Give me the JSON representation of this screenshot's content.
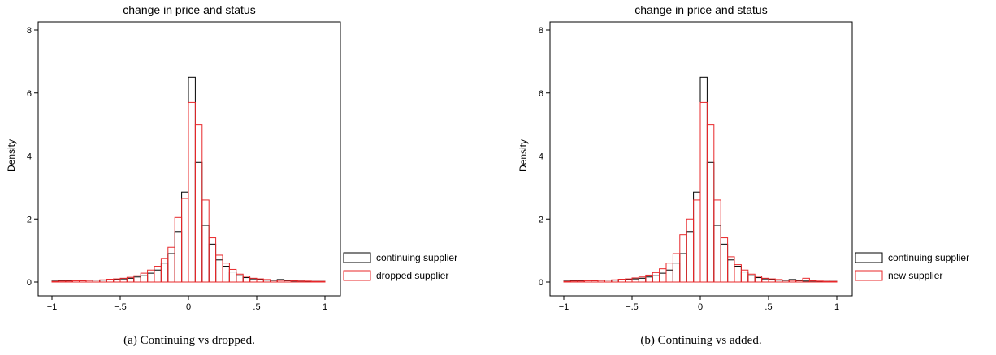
{
  "chart_data": [
    {
      "type": "histogram",
      "title": "change in price and status",
      "caption": "(a) Continuing vs dropped.",
      "ylabel": "Density",
      "xlim": [
        -1,
        1
      ],
      "ylim": [
        0,
        8
      ],
      "xticks": [
        "-1",
        "-.5",
        "0",
        ".5",
        "1"
      ],
      "yticks": [
        "0",
        "2",
        "4",
        "6",
        "8"
      ],
      "bin_width": 0.05,
      "legend_position": "right",
      "series": [
        {
          "name": "continuing supplier",
          "color": "#000000",
          "x": [
            -1.0,
            -0.95,
            -0.9,
            -0.85,
            -0.8,
            -0.75,
            -0.7,
            -0.65,
            -0.6,
            -0.55,
            -0.5,
            -0.45,
            -0.4,
            -0.35,
            -0.3,
            -0.25,
            -0.2,
            -0.15,
            -0.1,
            -0.05,
            0.0,
            0.05,
            0.1,
            0.15,
            0.2,
            0.25,
            0.3,
            0.35,
            0.4,
            0.45,
            0.5,
            0.55,
            0.6,
            0.65,
            0.7,
            0.75,
            0.8,
            0.85,
            0.9,
            0.95
          ],
          "values": [
            0.03,
            0.04,
            0.04,
            0.05,
            0.04,
            0.05,
            0.06,
            0.06,
            0.08,
            0.09,
            0.1,
            0.12,
            0.16,
            0.2,
            0.28,
            0.38,
            0.6,
            0.9,
            1.6,
            2.85,
            6.5,
            3.8,
            1.8,
            1.2,
            0.7,
            0.5,
            0.32,
            0.2,
            0.14,
            0.1,
            0.08,
            0.06,
            0.05,
            0.08,
            0.04,
            0.03,
            0.03,
            0.02,
            0.02,
            0.02
          ]
        },
        {
          "name": "dropped supplier",
          "color": "#e8272a",
          "x": [
            -1.0,
            -0.95,
            -0.9,
            -0.85,
            -0.8,
            -0.75,
            -0.7,
            -0.65,
            -0.6,
            -0.55,
            -0.5,
            -0.45,
            -0.4,
            -0.35,
            -0.3,
            -0.25,
            -0.2,
            -0.15,
            -0.1,
            -0.05,
            0.0,
            0.05,
            0.1,
            0.15,
            0.2,
            0.25,
            0.3,
            0.35,
            0.4,
            0.45,
            0.5,
            0.55,
            0.6,
            0.65,
            0.7,
            0.75,
            0.8,
            0.85,
            0.9,
            0.95
          ],
          "values": [
            0.02,
            0.03,
            0.03,
            0.04,
            0.04,
            0.05,
            0.06,
            0.07,
            0.09,
            0.1,
            0.12,
            0.15,
            0.2,
            0.28,
            0.38,
            0.5,
            0.75,
            1.1,
            2.05,
            2.65,
            5.7,
            5.0,
            2.6,
            1.4,
            0.85,
            0.6,
            0.4,
            0.25,
            0.18,
            0.12,
            0.1,
            0.08,
            0.06,
            0.05,
            0.05,
            0.04,
            0.03,
            0.03,
            0.02,
            0.02
          ]
        }
      ]
    },
    {
      "type": "histogram",
      "title": "change in price and status",
      "caption": "(b) Continuing vs added.",
      "ylabel": "Density",
      "xlim": [
        -1,
        1
      ],
      "ylim": [
        0,
        8
      ],
      "xticks": [
        "-1",
        "-.5",
        "0",
        ".5",
        "1"
      ],
      "yticks": [
        "0",
        "2",
        "4",
        "6",
        "8"
      ],
      "bin_width": 0.05,
      "legend_position": "right",
      "series": [
        {
          "name": "continuing supplier",
          "color": "#000000",
          "x": [
            -1.0,
            -0.95,
            -0.9,
            -0.85,
            -0.8,
            -0.75,
            -0.7,
            -0.65,
            -0.6,
            -0.55,
            -0.5,
            -0.45,
            -0.4,
            -0.35,
            -0.3,
            -0.25,
            -0.2,
            -0.15,
            -0.1,
            -0.05,
            0.0,
            0.05,
            0.1,
            0.15,
            0.2,
            0.25,
            0.3,
            0.35,
            0.4,
            0.45,
            0.5,
            0.55,
            0.6,
            0.65,
            0.7,
            0.75,
            0.8,
            0.85,
            0.9,
            0.95
          ],
          "values": [
            0.03,
            0.04,
            0.04,
            0.05,
            0.04,
            0.05,
            0.06,
            0.06,
            0.08,
            0.09,
            0.1,
            0.12,
            0.16,
            0.2,
            0.28,
            0.38,
            0.6,
            0.9,
            1.6,
            2.85,
            6.5,
            3.8,
            1.8,
            1.2,
            0.7,
            0.5,
            0.32,
            0.2,
            0.14,
            0.1,
            0.08,
            0.06,
            0.05,
            0.08,
            0.04,
            0.03,
            0.03,
            0.02,
            0.02,
            0.02
          ]
        },
        {
          "name": "new supplier",
          "color": "#e8272a",
          "x": [
            -1.0,
            -0.95,
            -0.9,
            -0.85,
            -0.8,
            -0.75,
            -0.7,
            -0.65,
            -0.6,
            -0.55,
            -0.5,
            -0.45,
            -0.4,
            -0.35,
            -0.3,
            -0.25,
            -0.2,
            -0.15,
            -0.1,
            -0.05,
            0.0,
            0.05,
            0.1,
            0.15,
            0.2,
            0.25,
            0.3,
            0.35,
            0.4,
            0.45,
            0.5,
            0.55,
            0.6,
            0.65,
            0.7,
            0.75,
            0.8,
            0.85,
            0.9,
            0.95
          ],
          "values": [
            0.02,
            0.03,
            0.03,
            0.04,
            0.04,
            0.05,
            0.06,
            0.07,
            0.09,
            0.1,
            0.13,
            0.16,
            0.22,
            0.3,
            0.42,
            0.6,
            0.9,
            1.5,
            2.0,
            2.6,
            5.7,
            5.0,
            2.6,
            1.4,
            0.8,
            0.55,
            0.38,
            0.25,
            0.18,
            0.12,
            0.1,
            0.08,
            0.06,
            0.05,
            0.05,
            0.12,
            0.04,
            0.03,
            0.02,
            0.02
          ]
        }
      ]
    }
  ]
}
